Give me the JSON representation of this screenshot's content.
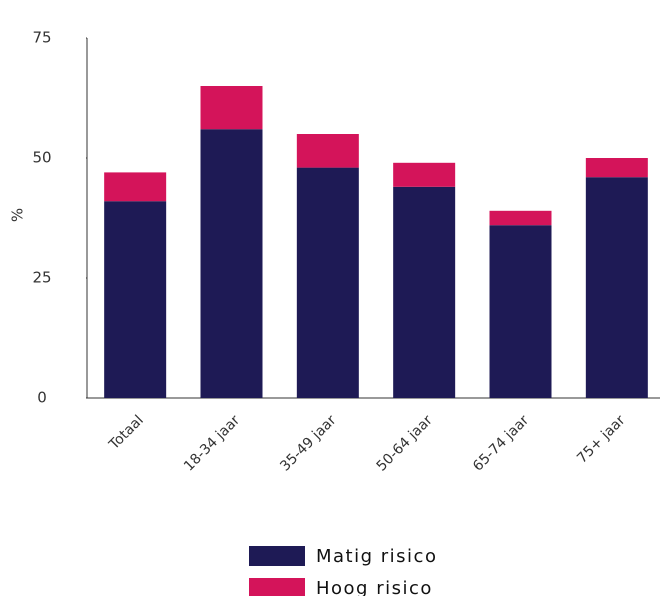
{
  "chart_data": {
    "type": "stacked_bar",
    "y_label": "%",
    "categories": [
      "Totaal",
      "18-34 jaar",
      "35-49 jaar",
      "50-64 jaar",
      "65-74 jaar",
      "75+ jaar"
    ],
    "series": [
      {
        "name": "Matig risico",
        "color": "#1e1a55",
        "values": [
          41,
          56,
          48,
          44,
          36,
          46
        ]
      },
      {
        "name": "Hoog risico",
        "color": "#d4145a",
        "values": [
          6,
          9,
          7,
          5,
          3,
          4
        ]
      }
    ],
    "ylim": [
      0,
      75
    ],
    "yticks": [
      0,
      25,
      50,
      75
    ],
    "grid": false,
    "legend": "bottom"
  }
}
